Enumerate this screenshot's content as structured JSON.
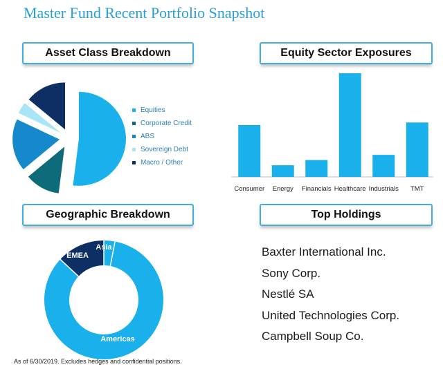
{
  "title": "Master Fund Recent Portfolio Snapshot",
  "footnote": "As of 6/30/2019.  Excludes hedges and confidential positions.",
  "headers": {
    "asset_class": "Asset Class Breakdown",
    "equity_sector": "Equity Sector Exposures",
    "geographic": "Geographic Breakdown",
    "top_holdings": "Top Holdings"
  },
  "top_holdings": [
    "Baxter International Inc.",
    "Sony Corp.",
    "Nestlé SA",
    "United Technologies Corp.",
    "Campbell Soup Co."
  ],
  "colors": {
    "accent": "#2a9fd6",
    "header_border": "#42aee0",
    "legend_text": "#2e7fb3"
  },
  "chart_data": [
    {
      "type": "pie",
      "labels": [
        "Equities",
        "Corporate Credit",
        "ABS",
        "Sovereign Debt",
        "Macro / Other"
      ],
      "values": [
        52,
        12,
        18,
        4,
        14
      ],
      "colors": [
        "#1ab0ec",
        "#0e6b7a",
        "#1689cc",
        "#a8e6f7",
        "#0d2f63"
      ],
      "exploded": true,
      "legend": "right"
    },
    {
      "type": "bar",
      "categories": [
        "Consumer",
        "Energy",
        "Financials",
        "Healthcare",
        "Industrials",
        "TMT"
      ],
      "values": [
        20,
        4.5,
        6.5,
        40,
        8.5,
        21
      ],
      "ylim": [
        0,
        40
      ],
      "color": "#1ab0ec"
    },
    {
      "type": "pie",
      "donut": true,
      "labels": [
        "Asia",
        "EMEA",
        "Americas"
      ],
      "values": [
        3,
        13,
        84
      ],
      "colors": [
        "#1ab0ec",
        "#0d2f63",
        "#1ab0ec"
      ],
      "slice_labels": [
        "Asia",
        "EMEA",
        "Americas"
      ]
    }
  ]
}
